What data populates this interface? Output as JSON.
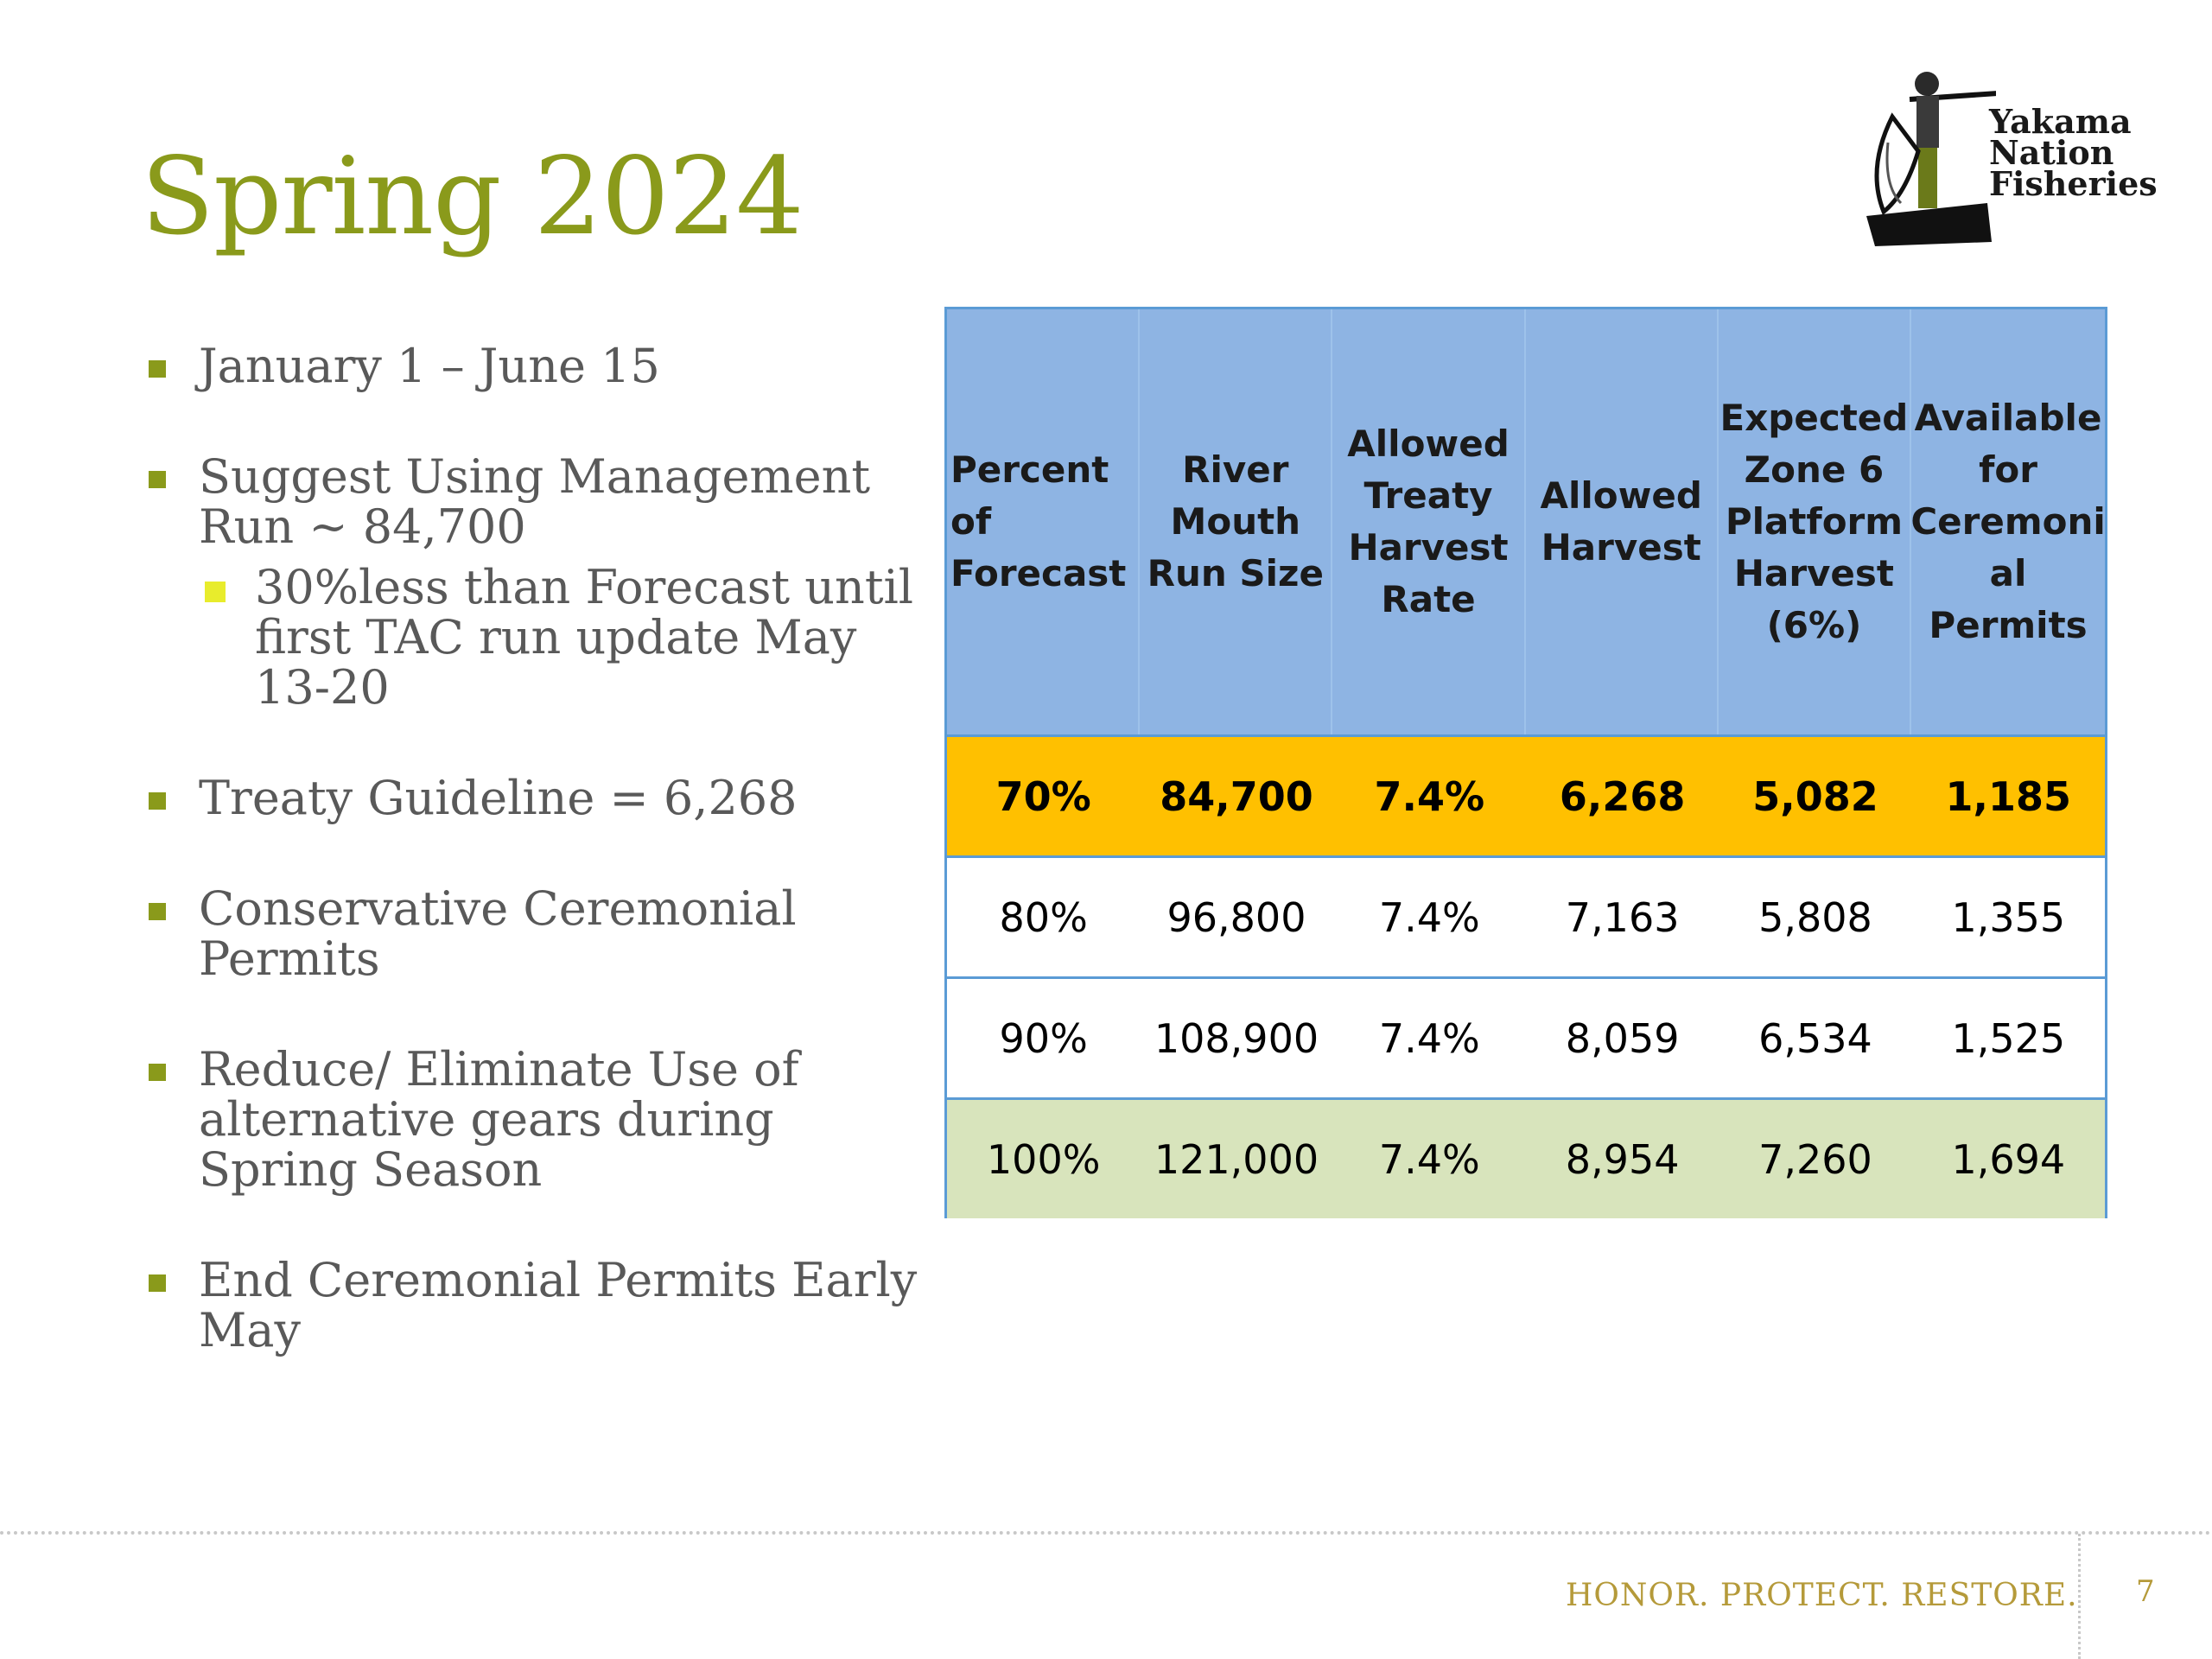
{
  "slide": {
    "title": "Spring 2024",
    "page_number": "7",
    "tagline": "HONOR. PROTECT. RESTORE."
  },
  "logo": {
    "line1": "Yakama",
    "line2": "Nation",
    "line3": "Fisheries"
  },
  "bullets": [
    "January 1 – June 15",
    "Suggest Using Management Run ~ 84,700",
    "30%less than Forecast until first TAC run update May 13-20",
    "Treaty Guideline = 6,268",
    "Conservative Ceremonial Permits",
    "Reduce/ Eliminate Use of alternative gears during Spring Season",
    "End Ceremonial Permits Early May"
  ],
  "table": {
    "headers": [
      "Percent of Forecast",
      "River Mouth Run Size",
      "Allowed Treaty Harvest Rate",
      "Allowed Harvest",
      "Expected Zone 6 Platform Harvest (6%)",
      "Available for Ceremonial Permits"
    ],
    "header_lines": [
      [
        "Percent of",
        "Forecast"
      ],
      [
        "River",
        "Mouth",
        "Run Size"
      ],
      [
        "Allowed",
        "Treaty",
        "Harvest",
        "Rate"
      ],
      [
        "Allowed",
        "Harvest"
      ],
      [
        "Expected",
        "Zone 6",
        "Platform",
        "Harvest",
        "(6%)"
      ],
      [
        "Available",
        "for",
        "Ceremoni",
        "al Permits"
      ]
    ],
    "rows": [
      [
        "70%",
        "84,700",
        "7.4%",
        "6,268",
        "5,082",
        "1,185"
      ],
      [
        "80%",
        "96,800",
        "7.4%",
        "7,163",
        "5,808",
        "1,355"
      ],
      [
        "90%",
        "108,900",
        "7.4%",
        "8,059",
        "6,534",
        "1,525"
      ],
      [
        "100%",
        "121,000",
        "7.4%",
        "8,954",
        "7,260",
        "1,694"
      ]
    ]
  },
  "colors": {
    "title": "#8a9a1b",
    "bullet_marker": "#8a9a1b",
    "sub_bullet_marker": "#e8ec2c",
    "table_header": "#8eb4e3",
    "highlight_row": "#ffc000",
    "last_row": "#d8e4bc",
    "table_border": "#5b9bd5",
    "tagline": "#b59a3a"
  }
}
